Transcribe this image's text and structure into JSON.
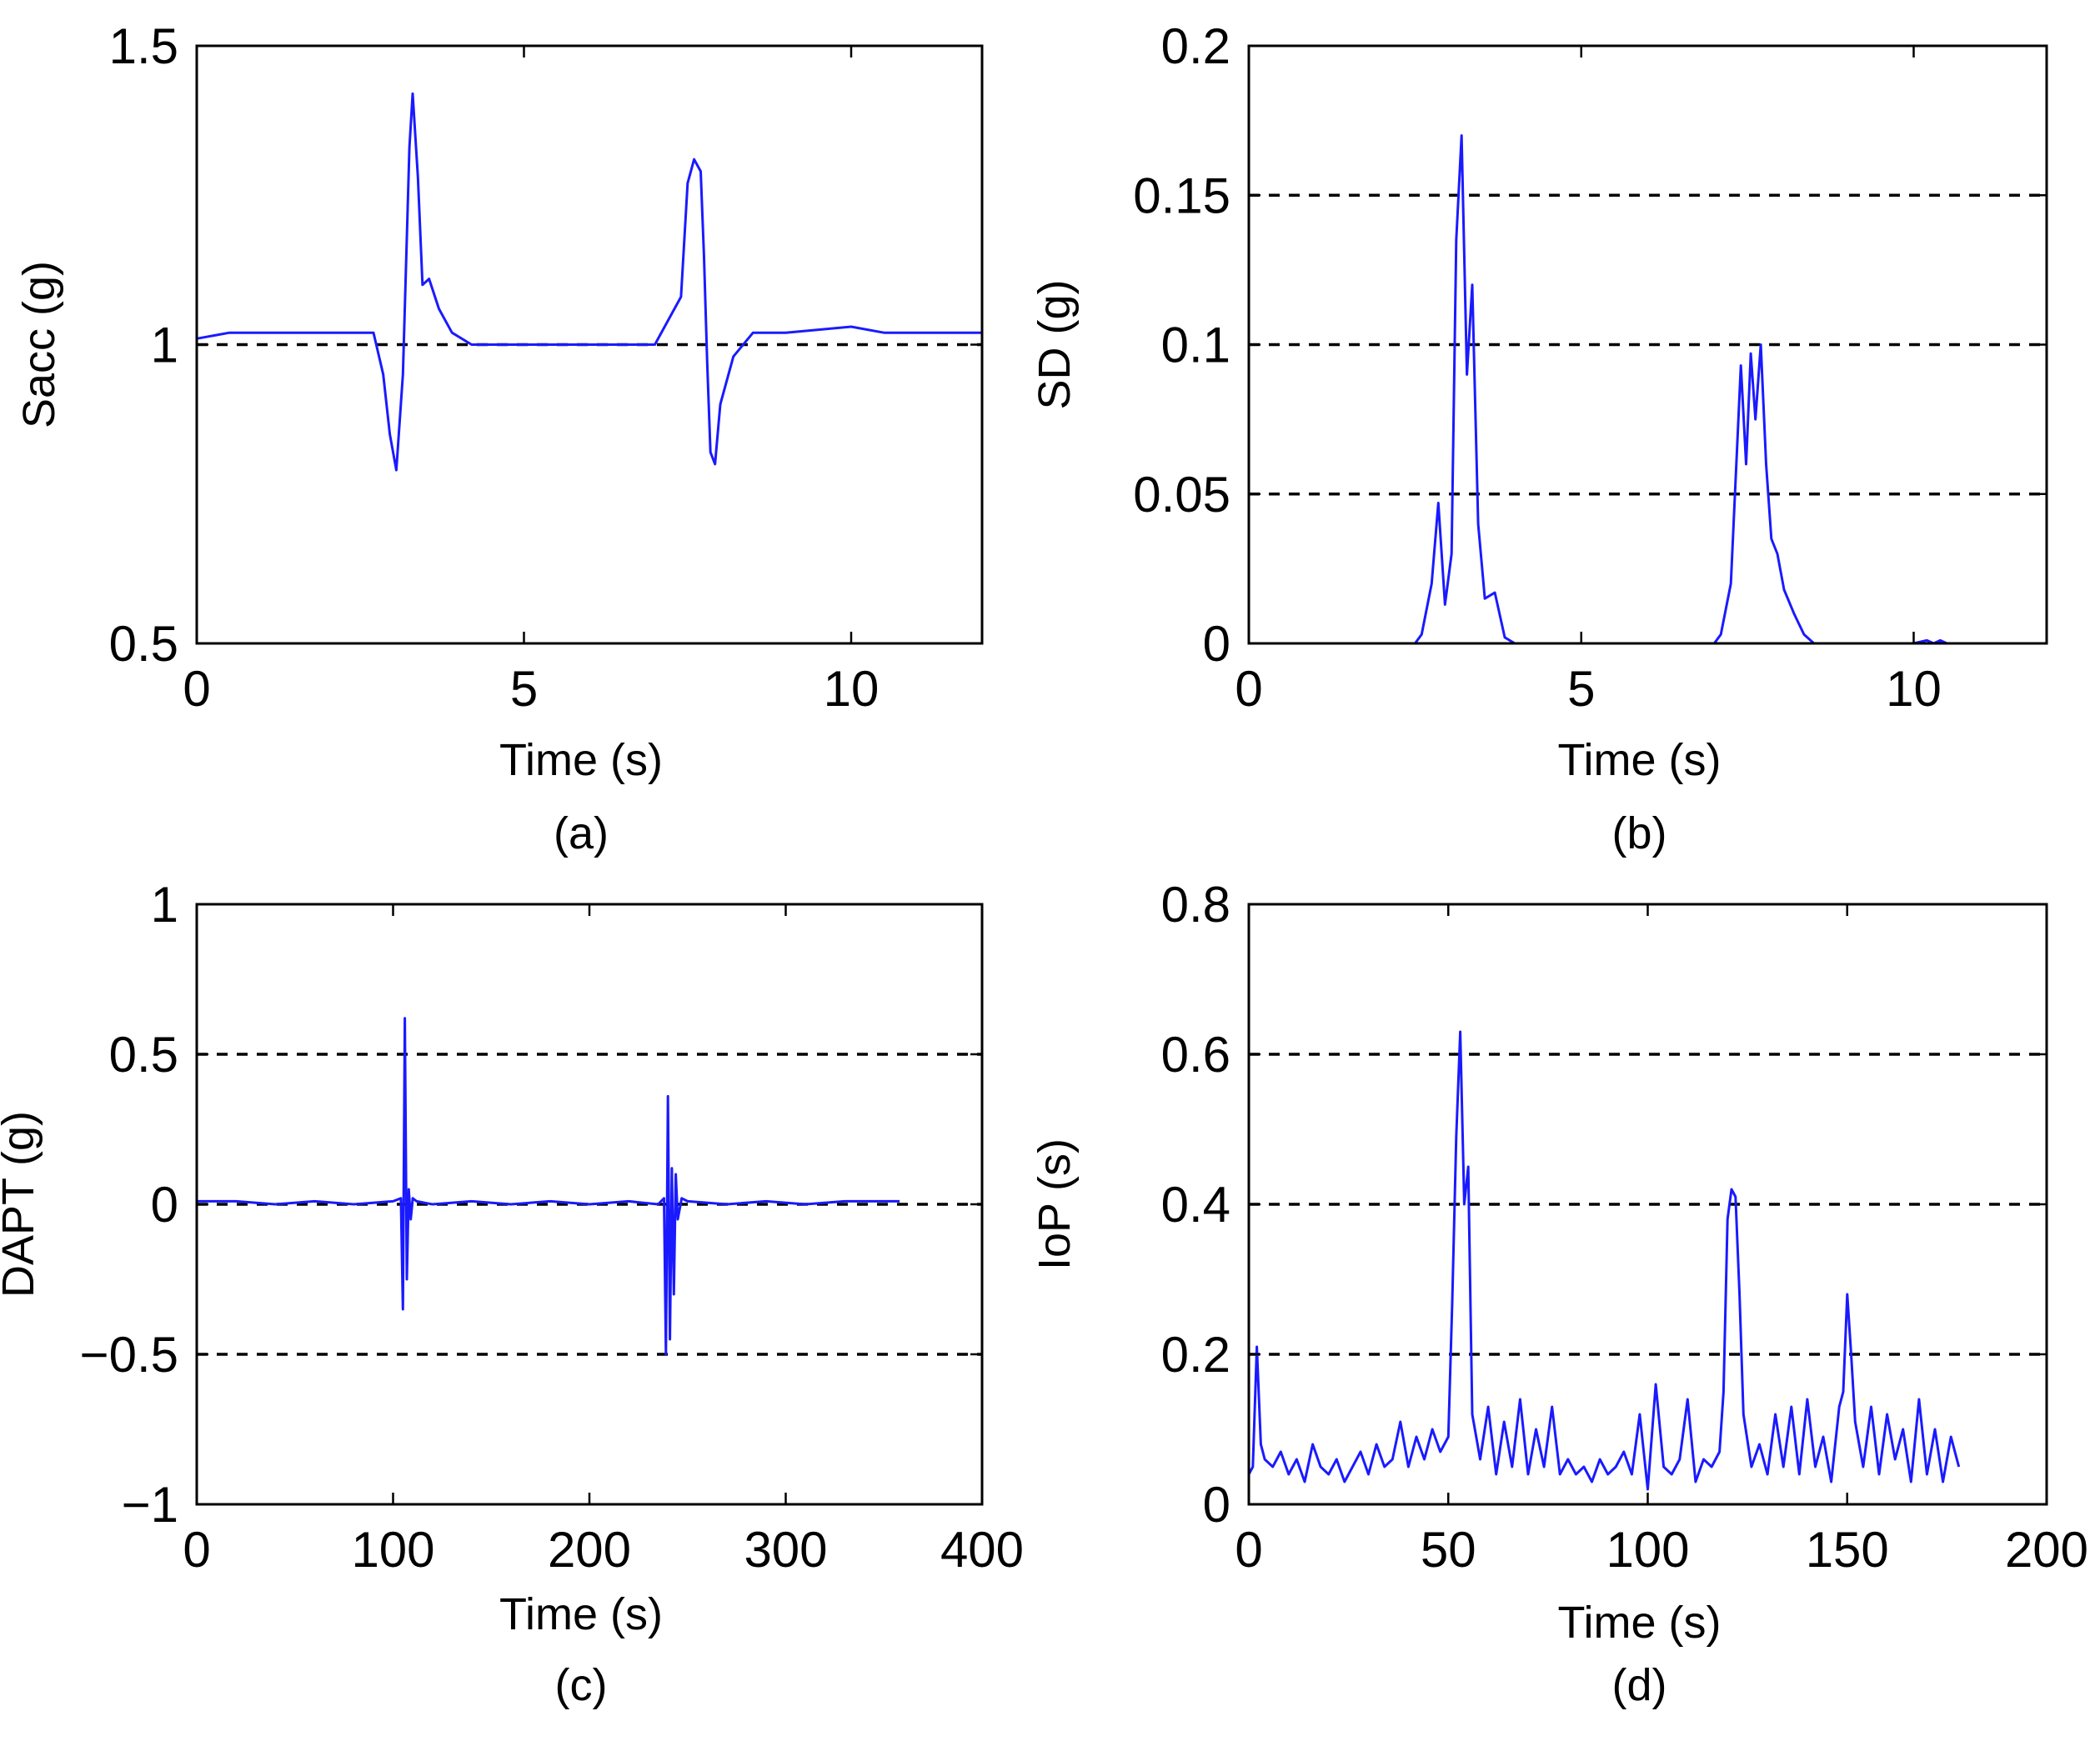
{
  "figure": {
    "panels": [
      {
        "id": "a",
        "caption": "(a)",
        "title": "",
        "type": "line",
        "xlabel": "Time (s)",
        "ylabel": "Sacc (g)",
        "xlim": [
          0,
          12
        ],
        "ylim": [
          0.5,
          1.5
        ],
        "xticks": [
          0,
          5,
          10
        ],
        "yticks": [
          0.5,
          1,
          1.5
        ],
        "xtick_labels": [
          "0",
          "5",
          "10"
        ],
        "ytick_labels": [
          "0.5",
          "1",
          "1.5"
        ],
        "dashed_lines": [
          1
        ],
        "series_color": "#1a1aff",
        "line_width": 3,
        "series": [
          {
            "name": "Sacc",
            "x": [
              0,
              0.5,
              1.0,
              1.5,
              2.0,
              2.5,
              2.7,
              2.85,
              2.95,
              3.05,
              3.15,
              3.25,
              3.3,
              3.38,
              3.45,
              3.55,
              3.7,
              3.9,
              4.2,
              4.6,
              5.0,
              6.0,
              7.0,
              7.4,
              7.5,
              7.6,
              7.7,
              7.75,
              7.8,
              7.85,
              7.92,
              8.0,
              8.2,
              8.5,
              9.0,
              10.0,
              10.5,
              11.0,
              11.5,
              12.0
            ],
            "y": [
              1.01,
              1.02,
              1.02,
              1.02,
              1.02,
              1.02,
              1.02,
              0.95,
              0.85,
              0.79,
              0.95,
              1.33,
              1.42,
              1.28,
              1.1,
              1.11,
              1.06,
              1.02,
              1.0,
              1.0,
              1.0,
              1.0,
              1.0,
              1.08,
              1.27,
              1.31,
              1.29,
              1.15,
              0.97,
              0.82,
              0.8,
              0.9,
              0.98,
              1.02,
              1.02,
              1.03,
              1.02,
              1.02,
              1.02,
              1.02
            ]
          }
        ]
      },
      {
        "id": "b",
        "caption": "(b)",
        "title": "",
        "type": "line",
        "xlabel": "Time (s)",
        "ylabel": "SD (g)",
        "xlim": [
          0,
          12
        ],
        "ylim": [
          0,
          0.2
        ],
        "xticks": [
          0,
          5,
          10
        ],
        "yticks": [
          0,
          0.05,
          0.1,
          0.15,
          0.2
        ],
        "xtick_labels": [
          "0",
          "5",
          "10"
        ],
        "ytick_labels": [
          "0",
          "0.05",
          "0.1",
          "0.15",
          "0.2"
        ],
        "dashed_lines": [
          0.05,
          0.1,
          0.15
        ],
        "series_color": "#1a1aff",
        "line_width": 3,
        "series": [
          {
            "name": "SD",
            "x": [
              0,
              2.5,
              2.6,
              2.75,
              2.85,
              2.95,
              3.05,
              3.12,
              3.2,
              3.28,
              3.36,
              3.45,
              3.55,
              3.7,
              3.85,
              4.0,
              7.0,
              7.1,
              7.25,
              7.4,
              7.48,
              7.55,
              7.62,
              7.7,
              7.78,
              7.86,
              7.95,
              8.05,
              8.2,
              8.35,
              8.5,
              10.0,
              10.2,
              10.3,
              10.4,
              10.5,
              12.0
            ],
            "y": [
              0,
              0,
              0.003,
              0.02,
              0.047,
              0.013,
              0.03,
              0.135,
              0.17,
              0.09,
              0.12,
              0.04,
              0.015,
              0.017,
              0.002,
              0,
              0,
              0.003,
              0.02,
              0.093,
              0.06,
              0.097,
              0.075,
              0.1,
              0.06,
              0.035,
              0.03,
              0.018,
              0.01,
              0.003,
              0,
              0,
              0.001,
              0,
              0.001,
              0,
              0
            ]
          }
        ]
      },
      {
        "id": "c",
        "caption": "(c)",
        "title": "",
        "type": "line",
        "xlabel": "Time (s)",
        "ylabel": "DAPT (g)",
        "xlim": [
          0,
          400
        ],
        "ylim": [
          -1,
          1
        ],
        "xticks": [
          0,
          100,
          200,
          300,
          400
        ],
        "yticks": [
          -1,
          -0.5,
          0,
          0.5,
          1
        ],
        "xtick_labels": [
          "0",
          "100",
          "200",
          "300",
          "400"
        ],
        "ytick_labels": [
          "−1",
          "−0.5",
          "0",
          "0.5",
          "1"
        ],
        "dashed_lines": [
          -0.5,
          0,
          0.5
        ],
        "series_color": "#1a1aff",
        "line_width": 3,
        "series": [
          {
            "name": "DAPT",
            "x": [
              0,
              20,
              40,
              60,
              80,
              100,
              104,
              105,
              106,
              107,
              108,
              109,
              110,
              112,
              120,
              140,
              160,
              180,
              200,
              220,
              235,
              238,
              239,
              240,
              241,
              242,
              243,
              244,
              245,
              247,
              250,
              270,
              290,
              310,
              330,
              350,
              358
            ],
            "y": [
              0.01,
              0.01,
              0.0,
              0.01,
              0.0,
              0.01,
              0.02,
              -0.35,
              0.62,
              -0.25,
              0.05,
              -0.05,
              0.02,
              0.01,
              0.0,
              0.01,
              0.0,
              0.01,
              0.0,
              0.01,
              0.0,
              0.02,
              -0.5,
              0.36,
              -0.45,
              0.12,
              -0.3,
              0.1,
              -0.05,
              0.02,
              0.01,
              0.0,
              0.01,
              0.0,
              0.01,
              0.01,
              0.01
            ]
          }
        ]
      },
      {
        "id": "d",
        "caption": "(d)",
        "title": "",
        "type": "line",
        "xlabel": "Time (s)",
        "ylabel": "IoP (s)",
        "xlim": [
          0,
          200
        ],
        "ylim": [
          0,
          0.8
        ],
        "xticks": [
          0,
          50,
          100,
          150,
          200
        ],
        "yticks": [
          0,
          0.2,
          0.4,
          0.6,
          0.8
        ],
        "xtick_labels": [
          "0",
          "50",
          "100",
          "150",
          "200"
        ],
        "ytick_labels": [
          "0",
          "0.2",
          "0.4",
          "0.6",
          "0.8"
        ],
        "dashed_lines": [
          0.2,
          0.4,
          0.6
        ],
        "series_color": "#1a1aff",
        "line_width": 3,
        "series": [
          {
            "name": "IoP",
            "x": [
              0,
              1,
              2,
              3,
              4,
              6,
              8,
              10,
              12,
              14,
              16,
              18,
              20,
              22,
              24,
              26,
              28,
              30,
              32,
              34,
              36,
              38,
              40,
              42,
              44,
              46,
              48,
              50,
              51,
              52,
              53,
              54,
              55,
              56,
              58,
              60,
              62,
              64,
              66,
              68,
              70,
              72,
              74,
              76,
              78,
              80,
              82,
              84,
              86,
              88,
              90,
              92,
              94,
              96,
              98,
              100,
              102,
              104,
              106,
              108,
              110,
              112,
              114,
              116,
              118,
              119,
              120,
              121,
              122,
              123,
              124,
              126,
              128,
              130,
              132,
              134,
              136,
              138,
              140,
              142,
              144,
              146,
              148,
              149,
              150,
              151,
              152,
              154,
              156,
              158,
              160,
              162,
              164,
              166,
              168,
              170,
              172,
              174,
              176,
              178
            ],
            "y": [
              0.04,
              0.05,
              0.21,
              0.08,
              0.06,
              0.05,
              0.07,
              0.04,
              0.06,
              0.03,
              0.08,
              0.05,
              0.04,
              0.06,
              0.03,
              0.05,
              0.07,
              0.04,
              0.08,
              0.05,
              0.06,
              0.11,
              0.05,
              0.09,
              0.06,
              0.1,
              0.07,
              0.09,
              0.27,
              0.49,
              0.63,
              0.4,
              0.45,
              0.12,
              0.06,
              0.13,
              0.04,
              0.11,
              0.05,
              0.14,
              0.04,
              0.1,
              0.05,
              0.13,
              0.04,
              0.06,
              0.04,
              0.05,
              0.03,
              0.06,
              0.04,
              0.05,
              0.07,
              0.04,
              0.12,
              0.02,
              0.16,
              0.05,
              0.04,
              0.06,
              0.14,
              0.03,
              0.06,
              0.05,
              0.07,
              0.15,
              0.38,
              0.42,
              0.41,
              0.28,
              0.12,
              0.05,
              0.08,
              0.04,
              0.12,
              0.05,
              0.13,
              0.04,
              0.14,
              0.05,
              0.09,
              0.03,
              0.13,
              0.15,
              0.28,
              0.2,
              0.11,
              0.05,
              0.13,
              0.04,
              0.12,
              0.06,
              0.1,
              0.03,
              0.14,
              0.04,
              0.1,
              0.03,
              0.09,
              0.05
            ]
          }
        ]
      }
    ]
  }
}
